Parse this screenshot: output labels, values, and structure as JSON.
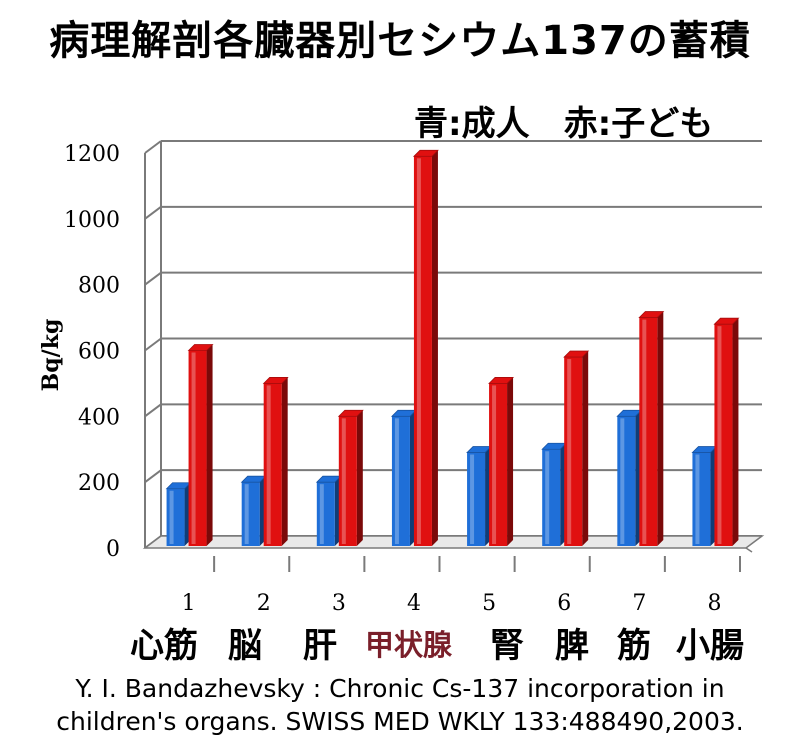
{
  "chart_data": {
    "type": "bar",
    "title": "病理解剖各臓器別セシウム137の蓄積",
    "subtitle": "青:成人　赤:子ども",
    "ylabel": "Bq/kg",
    "xlabel": "",
    "ylim": [
      0,
      1200
    ],
    "yticks": [
      "0",
      "200",
      "400",
      "600",
      "800",
      "1000",
      "1200"
    ],
    "categories": [
      "1",
      "2",
      "3",
      "4",
      "5",
      "6",
      "7",
      "8"
    ],
    "category_names": [
      "心筋",
      "脳",
      "肝",
      "甲状腺",
      "腎",
      "脾",
      "筋",
      "小腸"
    ],
    "highlighted_category": "甲状腺",
    "series": [
      {
        "values": [
          180,
          200,
          200,
          400,
          290,
          300,
          400,
          290
        ],
        "color": "#1f6fd8"
      },
      {
        "values": [
          600,
          500,
          400,
          1190,
          500,
          580,
          700,
          680
        ],
        "color": "#e01010"
      }
    ],
    "grid": true,
    "three_d": true
  },
  "citation": {
    "line1": "Y. I. Bandazhevsky : Chronic Cs-137 incorporation in",
    "line2": "children's organs. SWISS MED WKLY 133:488490,2003."
  },
  "colors": {
    "adult": "#1f6fd8",
    "child": "#e01010",
    "highlight_text": "#7a1f2a"
  }
}
